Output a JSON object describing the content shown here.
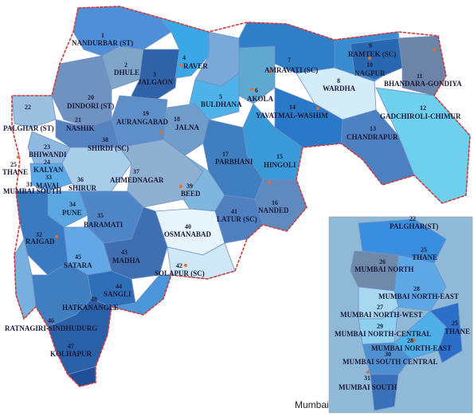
{
  "caption": "Mumbai",
  "colors": {
    "state_border": "#d23a3a",
    "city_marker": "#e0702c",
    "inset_background": "#8fb9d6"
  },
  "constituencies": [
    {
      "no": "1",
      "name": "NANDURBAR (ST)"
    },
    {
      "no": "2",
      "name": "DHULE"
    },
    {
      "no": "3",
      "name": "JALGAON"
    },
    {
      "no": "4",
      "name": "RAVER"
    },
    {
      "no": "5",
      "name": "BULDHANA"
    },
    {
      "no": "6",
      "name": "AKOLA"
    },
    {
      "no": "7",
      "name": "AMRAVATI (SC)"
    },
    {
      "no": "8",
      "name": "WARDHA"
    },
    {
      "no": "9",
      "name": "RAMTEK (SC)"
    },
    {
      "no": "10",
      "name": "NAGPUR"
    },
    {
      "no": "11",
      "name": "BHANDARA-GONDIYA"
    },
    {
      "no": "12",
      "name": "GADCHIROLI-CHIMUR"
    },
    {
      "no": "13",
      "name": "CHANDRAPUR"
    },
    {
      "no": "14",
      "name": "YAVATMAL-WASHIM"
    },
    {
      "no": "15",
      "name": "HINGOLI"
    },
    {
      "no": "16",
      "name": "NANDED"
    },
    {
      "no": "17",
      "name": "PARBHANI"
    },
    {
      "no": "18",
      "name": "JALNA"
    },
    {
      "no": "19",
      "name": "AURANGABAD"
    },
    {
      "no": "20",
      "name": "DINDORI (ST)"
    },
    {
      "no": "21",
      "name": "NASHIK"
    },
    {
      "no": "22",
      "name": "PALGHAR (ST)"
    },
    {
      "no": "23",
      "name": "BHIWANDI"
    },
    {
      "no": "24",
      "name": "KALYAN"
    },
    {
      "no": "25",
      "name": "THANE"
    },
    {
      "no": "31",
      "name": "MUMBAI SOUTH"
    },
    {
      "no": "33",
      "name": "MAVAL"
    },
    {
      "no": "34",
      "name": "PUNE"
    },
    {
      "no": "35",
      "name": "BARAMATI"
    },
    {
      "no": "36",
      "name": "SHIRUR"
    },
    {
      "no": "37",
      "name": "AHMEDNAGAR"
    },
    {
      "no": "38",
      "name": "SHIRDI (SC)"
    },
    {
      "no": "39",
      "name": "BEED"
    },
    {
      "no": "40",
      "name": "OSMANABAD"
    },
    {
      "no": "41",
      "name": "LATUR (SC)"
    },
    {
      "no": "42",
      "name": "SOLAPUR (SC)"
    },
    {
      "no": "43",
      "name": "MADHA"
    },
    {
      "no": "44",
      "name": "SANGLI"
    },
    {
      "no": "45",
      "name": "SATARA"
    },
    {
      "no": "46",
      "name": "RATNAGIRI-SINDHUDURG"
    },
    {
      "no": "47",
      "name": "KOLHAPUR"
    },
    {
      "no": "48",
      "name": "HATKANANGLE"
    },
    {
      "no": "32",
      "name": "RAIGAD"
    }
  ],
  "inset": [
    {
      "no": "22",
      "name": "PALGHAR(ST)"
    },
    {
      "no": "25",
      "name": "THANE"
    },
    {
      "no": "26",
      "name": "MUMBAI NORTH"
    },
    {
      "no": "28",
      "name": "MUMBAI NORTH-EAST"
    },
    {
      "no": "27",
      "name": "MUMBAI NORTH-WEST"
    },
    {
      "no": "29",
      "name": "MUMBAI NORTH-CENTRAL"
    },
    {
      "no": "28",
      "name": "MUMBAI NORTH-EAST"
    },
    {
      "no": "30",
      "name": "MUMBAI SOUTH CENTRAL"
    },
    {
      "no": "31",
      "name": "MUMBAI SOUTH"
    },
    {
      "no": "25",
      "name": "THANE"
    }
  ]
}
